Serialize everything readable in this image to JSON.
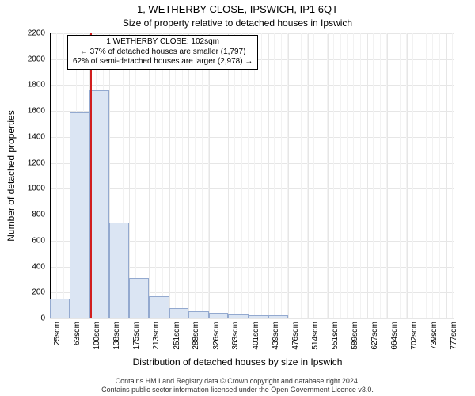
{
  "title": "1, WETHERBY CLOSE, IPSWICH, IP1 6QT",
  "subtitle": "Size of property relative to detached houses in Ipswich",
  "ylabel": "Number of detached properties",
  "xlabel": "Distribution of detached houses by size in Ipswich",
  "footer_line1": "Contains HM Land Registry data © Crown copyright and database right 2024.",
  "footer_line2": "Contains public sector information licensed under the Open Government Licence v3.0.",
  "annotation": {
    "line1": "1 WETHERBY CLOSE: 102sqm",
    "line2": "← 37% of detached houses are smaller (1,797)",
    "line3": "62% of semi-detached houses are larger (2,978) →"
  },
  "chart": {
    "type": "histogram",
    "background_color": "#ffffff",
    "grid_color": "#e6e6e6",
    "minor_grid_color": "#f2f2f2",
    "axis_color": "#000000",
    "bar_fill": "#dbe5f3",
    "bar_border": "#93a9cf",
    "marker_color": "#d11e1e",
    "marker_x": 102,
    "x_min": 25,
    "x_max": 790,
    "y_min": 0,
    "y_max": 2200,
    "y_ticks": [
      0,
      200,
      400,
      600,
      800,
      1000,
      1200,
      1400,
      1600,
      1800,
      2000,
      2200
    ],
    "x_tick_labels": [
      "25sqm",
      "63sqm",
      "100sqm",
      "138sqm",
      "175sqm",
      "213sqm",
      "251sqm",
      "288sqm",
      "326sqm",
      "363sqm",
      "401sqm",
      "439sqm",
      "476sqm",
      "514sqm",
      "551sqm",
      "589sqm",
      "627sqm",
      "664sqm",
      "702sqm",
      "739sqm",
      "777sqm"
    ],
    "x_tick_positions": [
      25,
      63,
      100,
      138,
      175,
      213,
      251,
      288,
      326,
      363,
      401,
      439,
      476,
      514,
      551,
      589,
      627,
      664,
      702,
      739,
      777
    ],
    "minor_x_step": 12.5,
    "bars": [
      {
        "x0": 25,
        "x1": 63,
        "v": 150
      },
      {
        "x0": 63,
        "x1": 100,
        "v": 1590
      },
      {
        "x0": 100,
        "x1": 138,
        "v": 1760
      },
      {
        "x0": 138,
        "x1": 175,
        "v": 740
      },
      {
        "x0": 175,
        "x1": 213,
        "v": 310
      },
      {
        "x0": 213,
        "x1": 251,
        "v": 170
      },
      {
        "x0": 251,
        "x1": 288,
        "v": 80
      },
      {
        "x0": 288,
        "x1": 326,
        "v": 55
      },
      {
        "x0": 326,
        "x1": 363,
        "v": 40
      },
      {
        "x0": 363,
        "x1": 401,
        "v": 32
      },
      {
        "x0": 401,
        "x1": 439,
        "v": 25
      },
      {
        "x0": 439,
        "x1": 476,
        "v": 22
      }
    ],
    "title_fontsize": 13,
    "subtitle_fontsize": 12,
    "label_fontsize": 12,
    "tick_fontsize": 10,
    "annotation_fontsize": 10
  }
}
